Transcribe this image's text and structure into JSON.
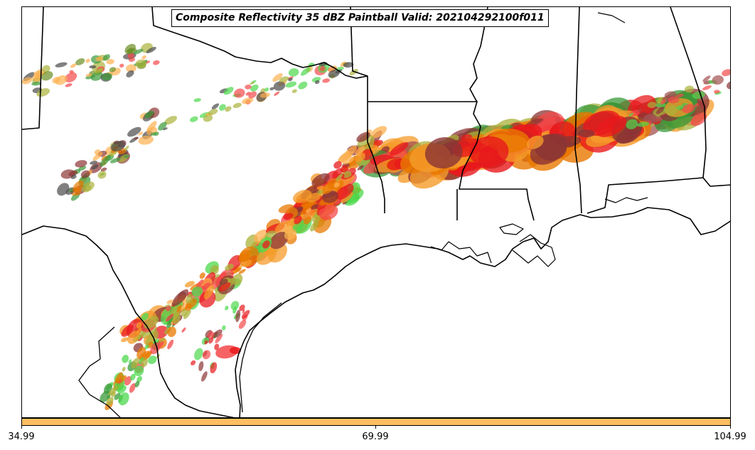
{
  "title": "Composite Reflectivity 35 dBZ Paintball Valid: 202104292100f011",
  "colorbar": {
    "color": "#fdbf60",
    "ticks": [
      "34.99",
      "69.99",
      "104.99"
    ]
  },
  "paint_colors": [
    "#e8191c",
    "#f4484a",
    "#e87800",
    "#f59b2a",
    "#fdb050",
    "#3a9a3a",
    "#4cd84c",
    "#a9b23a",
    "#8b3535",
    "#a35050",
    "#4a4a4a",
    "#6b8e23"
  ],
  "map_features": [
    "state-borders",
    "coastline",
    "lakes",
    "international-border"
  ]
}
